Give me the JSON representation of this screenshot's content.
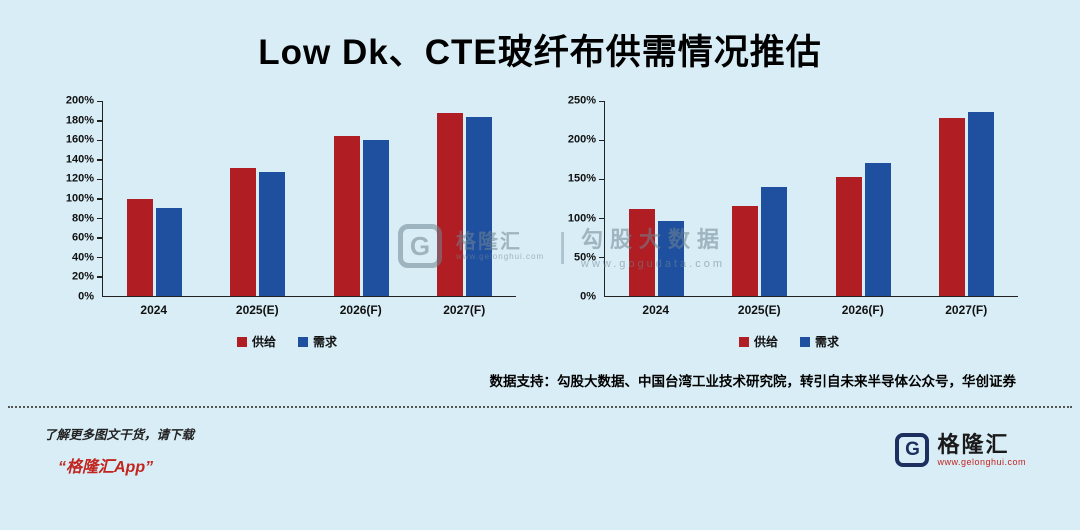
{
  "title": "Low Dk、CTE玻纤布供需情况推估",
  "colors": {
    "supply": "#b01e23",
    "demand": "#1f4f9f",
    "background": "#d8edf6",
    "accent_red": "#c2241f",
    "logo_navy": "#1c2f5f"
  },
  "chart_data": [
    {
      "type": "bar",
      "categories": [
        "2024",
        "2025(E)",
        "2026(F)",
        "2027(F)"
      ],
      "series": [
        {
          "name": "供给",
          "values": [
            100,
            131,
            164,
            188
          ]
        },
        {
          "name": "需求",
          "values": [
            90,
            127,
            160,
            184
          ]
        }
      ],
      "ylim": [
        0,
        200
      ],
      "ytick_step": 20,
      "ytick_suffix": "%",
      "grid": false,
      "legend_position": "bottom"
    },
    {
      "type": "bar",
      "categories": [
        "2024",
        "2025(E)",
        "2026(F)",
        "2027(F)"
      ],
      "series": [
        {
          "name": "供给",
          "values": [
            112,
            116,
            153,
            228
          ]
        },
        {
          "name": "需求",
          "values": [
            96,
            140,
            170,
            236
          ]
        }
      ],
      "ylim": [
        0,
        250
      ],
      "ytick_step": 50,
      "ytick_suffix": "%",
      "grid": false,
      "legend_position": "bottom"
    }
  ],
  "watermark": {
    "logo_letter": "G",
    "brand": "格隆汇",
    "brand_url": "www.gelonghui.com",
    "divider": "|",
    "product": "勾股大数据",
    "product_url": "www.gogudata.com"
  },
  "source_note": "数据支持：勾股大数据、中国台湾工业技术研究院，转引自未来半导体公众号，华创证券",
  "footer": {
    "promo_line1": "了解更多图文干货，请下载",
    "promo_line2": "“格隆汇App”",
    "logo_letter": "G",
    "brand_name": "格隆汇",
    "brand_url": "www.gelonghui.com"
  }
}
